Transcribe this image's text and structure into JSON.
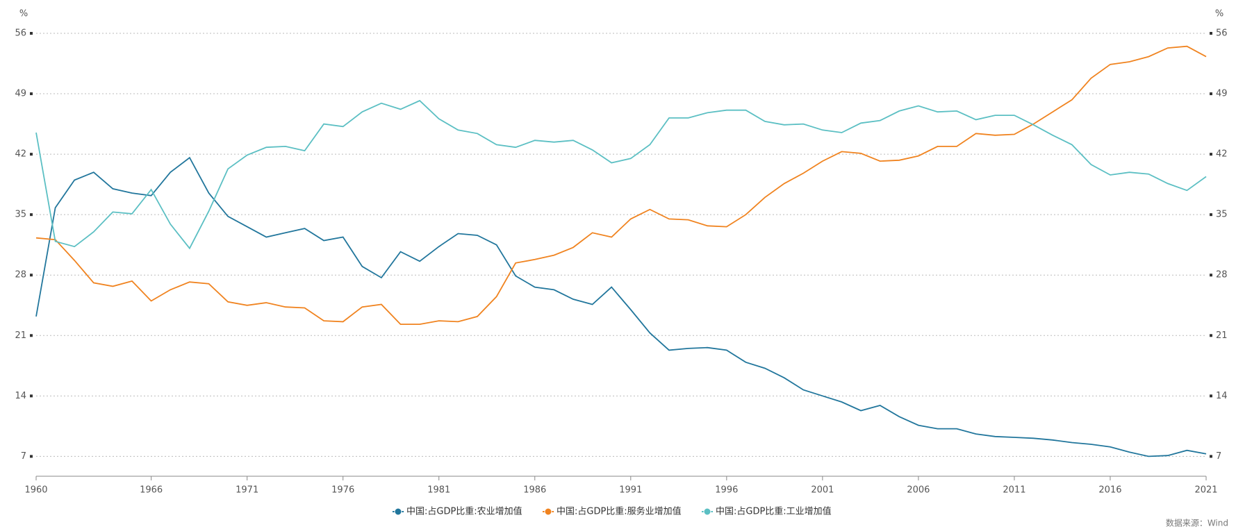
{
  "chart_data": {
    "type": "line",
    "y_unit": "%",
    "source": "数据来源：Wind",
    "x": [
      1960,
      1961,
      1962,
      1963,
      1964,
      1965,
      1966,
      1967,
      1968,
      1969,
      1970,
      1971,
      1972,
      1973,
      1974,
      1975,
      1976,
      1977,
      1978,
      1979,
      1980,
      1981,
      1982,
      1983,
      1984,
      1985,
      1986,
      1987,
      1988,
      1989,
      1990,
      1991,
      1992,
      1993,
      1994,
      1995,
      1996,
      1997,
      1998,
      1999,
      2000,
      2001,
      2002,
      2003,
      2004,
      2005,
      2006,
      2007,
      2008,
      2009,
      2010,
      2011,
      2012,
      2013,
      2014,
      2015,
      2016,
      2017,
      2018,
      2019,
      2020,
      2021
    ],
    "xlim": [
      1960,
      2021
    ],
    "xticks": [
      1960,
      1966,
      1971,
      1976,
      1981,
      1986,
      1991,
      1996,
      2001,
      2006,
      2011,
      2016,
      2021
    ],
    "ylim": [
      4.7,
      56
    ],
    "yticks": [
      7,
      14,
      21,
      28,
      35,
      42,
      49,
      56
    ],
    "grid": true,
    "series": [
      {
        "name": "中国:占GDP比重:农业增加值",
        "color": "#21769c",
        "values": [
          23.2,
          35.8,
          39.0,
          39.9,
          38.0,
          37.5,
          37.2,
          39.9,
          41.6,
          37.5,
          34.8,
          33.6,
          32.4,
          32.9,
          33.4,
          32.0,
          32.4,
          29.0,
          27.7,
          30.7,
          29.6,
          31.3,
          32.8,
          32.6,
          31.5,
          27.9,
          26.6,
          26.3,
          25.2,
          24.6,
          26.6,
          24.0,
          21.3,
          19.3,
          19.5,
          19.6,
          19.3,
          17.9,
          17.2,
          16.1,
          14.7,
          14.0,
          13.3,
          12.3,
          12.9,
          11.6,
          10.6,
          10.2,
          10.2,
          9.6,
          9.3,
          9.2,
          9.1,
          8.9,
          8.6,
          8.4,
          8.1,
          7.5,
          7.0,
          7.1,
          7.7,
          7.3
        ]
      },
      {
        "name": "中国:占GDP比重:服务业增加值",
        "color": "#f0831f",
        "values": [
          32.3,
          32.1,
          29.7,
          27.1,
          26.7,
          27.3,
          25.0,
          26.3,
          27.2,
          27.0,
          24.9,
          24.5,
          24.8,
          24.3,
          24.2,
          22.7,
          22.6,
          24.3,
          24.6,
          22.3,
          22.3,
          22.7,
          22.6,
          23.2,
          25.5,
          29.4,
          29.8,
          30.3,
          31.2,
          32.9,
          32.4,
          34.5,
          35.6,
          34.5,
          34.4,
          33.7,
          33.6,
          35.0,
          37.0,
          38.6,
          39.8,
          41.2,
          42.3,
          42.1,
          41.2,
          41.3,
          41.8,
          42.9,
          42.9,
          44.4,
          44.2,
          44.3,
          45.5,
          46.9,
          48.3,
          50.8,
          52.4,
          52.7,
          53.3,
          54.3,
          54.5,
          53.3
        ]
      },
      {
        "name": "中国:占GDP比重:工业增加值",
        "color": "#5bbfc3",
        "values": [
          44.5,
          31.9,
          31.3,
          33.0,
          35.3,
          35.1,
          37.9,
          33.9,
          31.1,
          35.4,
          40.3,
          41.9,
          42.8,
          42.9,
          42.4,
          45.5,
          45.2,
          46.9,
          47.9,
          47.2,
          48.2,
          46.1,
          44.8,
          44.4,
          43.1,
          42.8,
          43.6,
          43.4,
          43.6,
          42.5,
          41.0,
          41.5,
          43.1,
          46.2,
          46.2,
          46.8,
          47.1,
          47.1,
          45.8,
          45.4,
          45.5,
          44.8,
          44.5,
          45.6,
          45.9,
          47.0,
          47.6,
          46.9,
          47.0,
          46.0,
          46.5,
          46.5,
          45.4,
          44.2,
          43.1,
          40.8,
          39.6,
          39.9,
          39.7,
          38.6,
          37.8,
          39.4
        ]
      }
    ]
  }
}
